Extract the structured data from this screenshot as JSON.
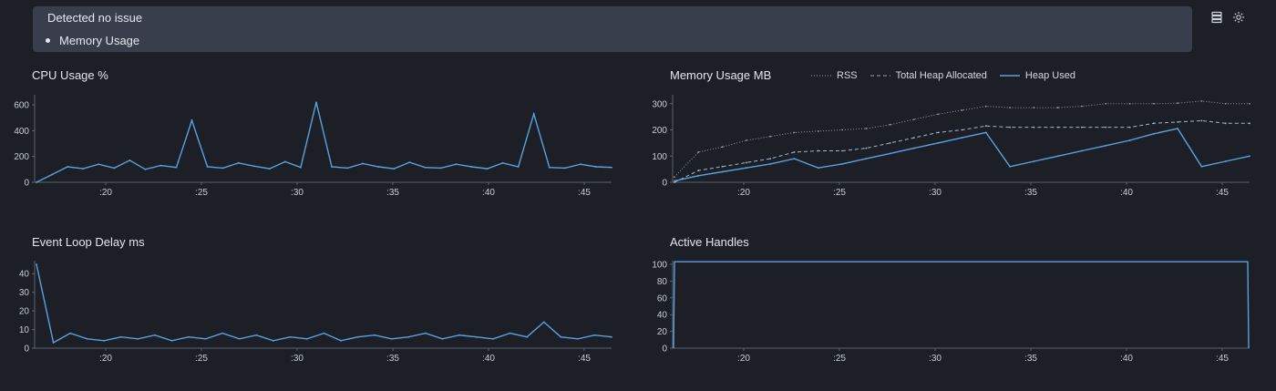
{
  "banner": {
    "title": "Detected no issue",
    "items": [
      "Memory Usage"
    ]
  },
  "toolbar": {
    "icons": [
      "list-view-icon",
      "settings-sun-icon"
    ]
  },
  "colors": {
    "accent": "#5aa1e0",
    "background": "#1c1f26",
    "banner": "#383e4b"
  },
  "chart_data": [
    {
      "id": "cpu",
      "type": "line",
      "title": "CPU Usage %",
      "x_ticks": [
        ":20",
        ":25",
        ":30",
        ":35",
        ":40",
        ":45"
      ],
      "y_ticks": [
        "0",
        "200",
        "400",
        "600"
      ],
      "ylim": [
        0,
        650
      ],
      "series": [
        {
          "values": [
            0,
            60,
            120,
            105,
            140,
            110,
            170,
            100,
            130,
            115,
            480,
            120,
            110,
            150,
            125,
            105,
            160,
            115,
            620,
            120,
            110,
            145,
            120,
            105,
            155,
            115,
            110,
            140,
            120,
            105,
            150,
            120,
            530,
            115,
            110,
            140,
            120,
            115
          ]
        }
      ]
    },
    {
      "id": "memory",
      "type": "line",
      "title": "Memory Usage MB",
      "x_ticks": [
        ":20",
        ":25",
        ":30",
        ":35",
        ":40",
        ":45"
      ],
      "y_ticks": [
        "0",
        "100",
        "200",
        "300"
      ],
      "ylim": [
        0,
        320
      ],
      "series": [
        {
          "name": "RSS",
          "style": "dotted",
          "values": [
            20,
            115,
            135,
            160,
            175,
            190,
            195,
            200,
            205,
            220,
            240,
            260,
            275,
            290,
            285,
            285,
            285,
            290,
            300,
            300,
            300,
            302,
            310,
            300,
            300
          ]
        },
        {
          "name": "Total Heap Allocated",
          "style": "dashed",
          "values": [
            0,
            45,
            60,
            75,
            90,
            115,
            120,
            120,
            130,
            150,
            170,
            190,
            200,
            215,
            210,
            210,
            210,
            210,
            210,
            210,
            225,
            230,
            235,
            225,
            225
          ]
        },
        {
          "name": "Heap Used",
          "style": "solid",
          "values": [
            5,
            25,
            40,
            55,
            70,
            90,
            55,
            70,
            90,
            110,
            130,
            150,
            170,
            190,
            60,
            80,
            100,
            120,
            140,
            160,
            185,
            205,
            60,
            80,
            100
          ]
        }
      ]
    },
    {
      "id": "eventloop",
      "type": "line",
      "title": "Event Loop Delay ms",
      "x_ticks": [
        ":20",
        ":25",
        ":30",
        ":35",
        ":40",
        ":45"
      ],
      "y_ticks": [
        "0",
        "10",
        "20",
        "30",
        "40"
      ],
      "ylim": [
        0,
        45
      ],
      "series": [
        {
          "values": [
            45,
            3,
            8,
            5,
            4,
            6,
            5,
            7,
            4,
            6,
            5,
            8,
            5,
            7,
            4,
            6,
            5,
            8,
            4,
            6,
            7,
            5,
            6,
            8,
            5,
            7,
            6,
            5,
            8,
            6,
            14,
            6,
            5,
            7,
            6
          ]
        }
      ]
    },
    {
      "id": "handles",
      "type": "line",
      "title": "Active Handles",
      "x_ticks": [
        ":20",
        ":25",
        ":30",
        ":35",
        ":40",
        ":45"
      ],
      "y_ticks": [
        "0",
        "20",
        "40",
        "60",
        "80",
        "100"
      ],
      "ylim": [
        0,
        100
      ],
      "series": [
        {
          "values": [
            0,
            103,
            103,
            103,
            103,
            103,
            103,
            103,
            103,
            103,
            103,
            103,
            103,
            0
          ]
        }
      ]
    }
  ]
}
